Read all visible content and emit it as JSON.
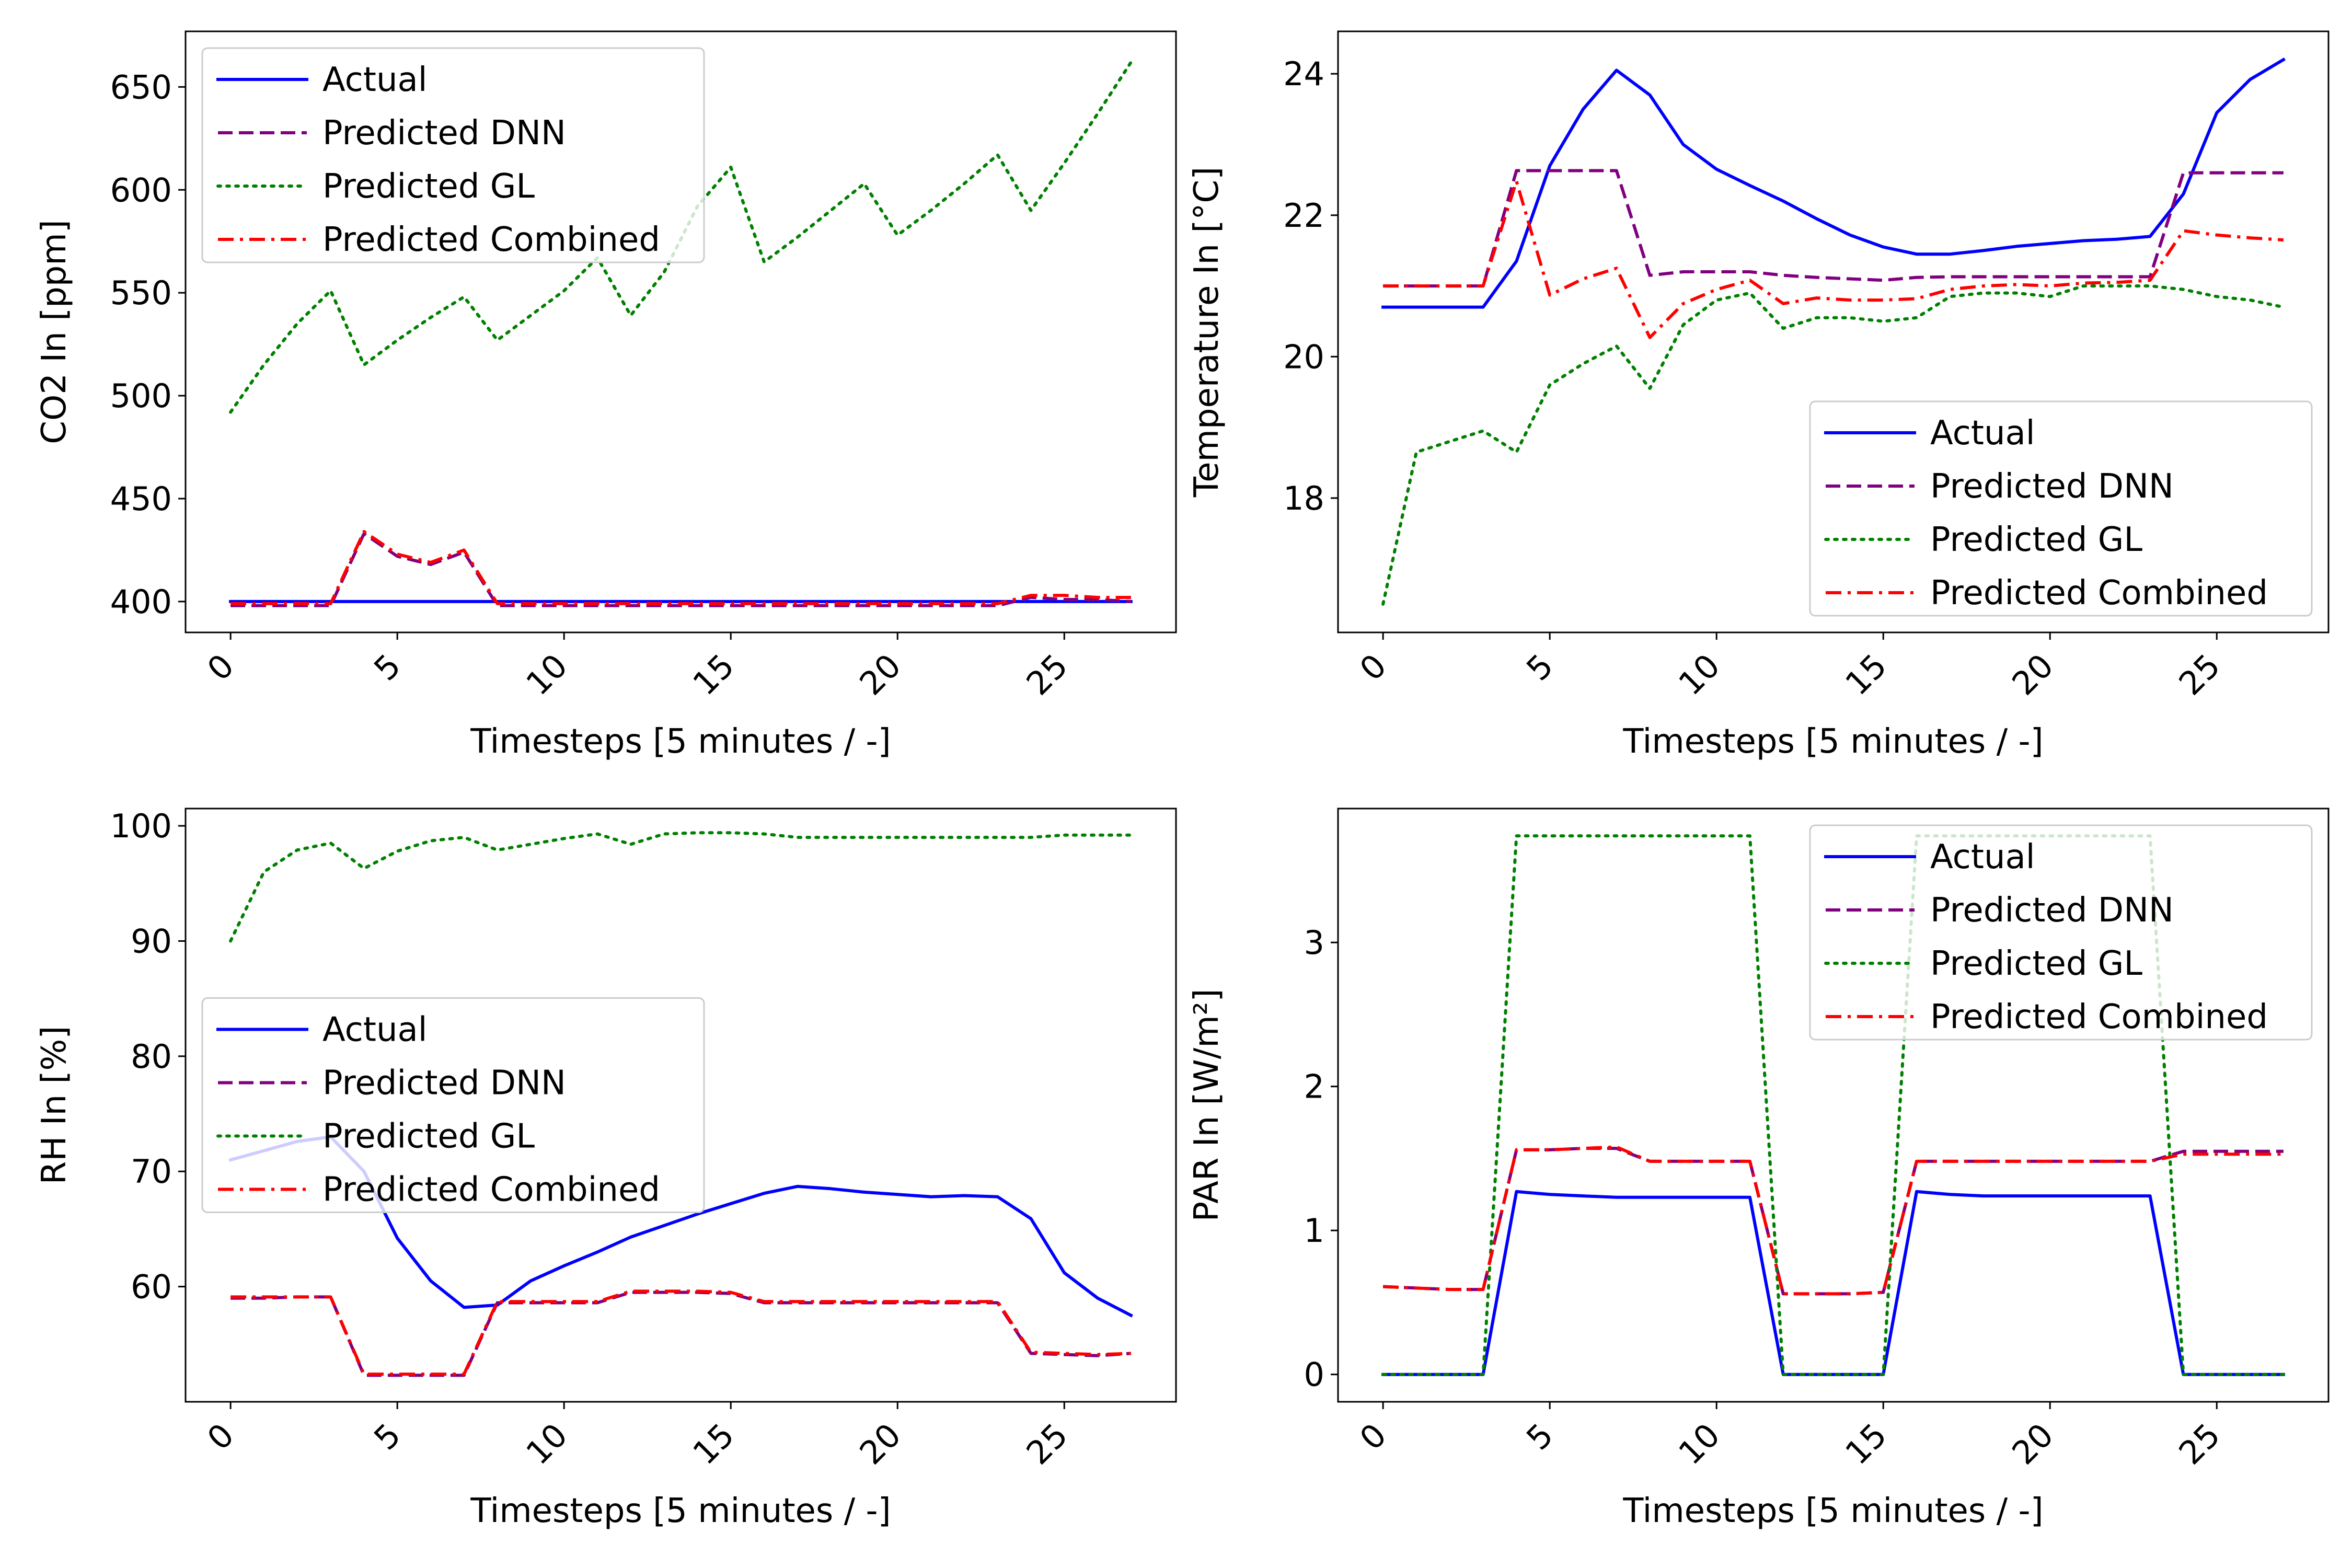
{
  "colors": {
    "actual": "#0000ff",
    "dnn": "#800080",
    "gl": "#008000",
    "combined": "#ff0000"
  },
  "legend_labels": [
    "Actual",
    "Predicted DNN",
    "Predicted GL",
    "Predicted Combined"
  ],
  "chart_data": [
    {
      "type": "line",
      "panel": "top-left",
      "xlabel": "Timesteps [5 minutes / -]",
      "ylabel": "CO2 In [ppm]",
      "xlim": [
        -1.35,
        28.35
      ],
      "ylim": [
        385,
        677
      ],
      "xticks": [
        0,
        5,
        10,
        15,
        20,
        25
      ],
      "yticks": [
        400,
        450,
        500,
        550,
        600,
        650
      ],
      "legend": "top-left",
      "grid": false,
      "x": [
        0,
        1,
        2,
        3,
        4,
        5,
        6,
        7,
        8,
        9,
        10,
        11,
        12,
        13,
        14,
        15,
        16,
        17,
        18,
        19,
        20,
        21,
        22,
        23,
        24,
        25,
        26,
        27
      ],
      "series": [
        {
          "name": "Actual",
          "style": "solid",
          "values": [
            400,
            400,
            400,
            400,
            400,
            400,
            400,
            400,
            400,
            400,
            400,
            400,
            400,
            400,
            400,
            400,
            400,
            400,
            400,
            400,
            400,
            400,
            400,
            400,
            400,
            400,
            400,
            400
          ]
        },
        {
          "name": "Predicted DNN",
          "style": "dashed",
          "values": [
            398,
            398,
            398,
            398,
            433,
            422,
            418,
            424,
            398,
            398,
            398,
            398,
            398,
            398,
            398,
            398,
            398,
            398,
            398,
            398,
            398,
            398,
            398,
            398,
            402,
            401,
            401,
            400
          ]
        },
        {
          "name": "Predicted GL",
          "style": "dotted",
          "values": [
            492,
            515,
            535,
            551,
            515,
            527,
            538,
            548,
            527,
            539,
            551,
            567,
            539,
            560,
            592,
            611,
            565,
            577,
            590,
            603,
            578,
            590,
            603,
            617,
            590,
            613,
            637,
            662
          ]
        },
        {
          "name": "Predicted Combined",
          "style": "dashdot",
          "values": [
            399,
            399,
            399,
            399,
            434,
            423,
            419,
            425,
            399,
            399,
            399,
            399,
            399,
            399,
            399,
            399,
            399,
            399,
            399,
            399,
            399,
            399,
            399,
            399,
            403,
            403,
            402,
            402
          ]
        }
      ]
    },
    {
      "type": "line",
      "panel": "top-right",
      "xlabel": "Timesteps [5 minutes / -]",
      "ylabel": "Temperature In [°C]",
      "xlim": [
        -1.35,
        28.35
      ],
      "ylim": [
        16.1,
        24.6
      ],
      "xticks": [
        0,
        5,
        10,
        15,
        20,
        25
      ],
      "yticks": [
        18,
        20,
        22,
        24
      ],
      "legend": "bottom-right",
      "grid": false,
      "x": [
        0,
        1,
        2,
        3,
        4,
        5,
        6,
        7,
        8,
        9,
        10,
        11,
        12,
        13,
        14,
        15,
        16,
        17,
        18,
        19,
        20,
        21,
        22,
        23,
        24,
        25,
        26,
        27
      ],
      "series": [
        {
          "name": "Actual",
          "style": "solid",
          "values": [
            20.7,
            20.7,
            20.7,
            20.7,
            21.35,
            22.7,
            23.5,
            24.05,
            23.7,
            23.0,
            22.65,
            22.42,
            22.2,
            21.95,
            21.72,
            21.55,
            21.45,
            21.45,
            21.5,
            21.56,
            21.6,
            21.64,
            21.66,
            21.7,
            22.3,
            23.45,
            23.92,
            24.2
          ]
        },
        {
          "name": "Predicted DNN",
          "style": "dashed",
          "values": [
            21.0,
            21.0,
            21.0,
            21.0,
            22.63,
            22.63,
            22.63,
            22.63,
            21.15,
            21.2,
            21.2,
            21.2,
            21.15,
            21.12,
            21.1,
            21.08,
            21.12,
            21.13,
            21.13,
            21.13,
            21.13,
            21.13,
            21.13,
            21.13,
            22.6,
            22.6,
            22.6,
            22.6
          ]
        },
        {
          "name": "Predicted GL",
          "style": "dotted",
          "values": [
            16.5,
            18.65,
            18.8,
            18.95,
            18.65,
            19.6,
            19.9,
            20.15,
            19.55,
            20.45,
            20.8,
            20.9,
            20.4,
            20.55,
            20.55,
            20.5,
            20.55,
            20.85,
            20.9,
            20.9,
            20.85,
            21.0,
            21.0,
            21.0,
            20.95,
            20.85,
            20.8,
            20.7
          ]
        },
        {
          "name": "Predicted Combined",
          "style": "dashdot",
          "values": [
            21.0,
            21.0,
            21.0,
            21.0,
            22.48,
            20.87,
            21.1,
            21.25,
            20.27,
            20.75,
            20.95,
            21.08,
            20.75,
            20.83,
            20.8,
            20.8,
            20.82,
            20.95,
            21.0,
            21.02,
            21.0,
            21.04,
            21.05,
            21.08,
            21.78,
            21.72,
            21.68,
            21.65
          ]
        }
      ]
    },
    {
      "type": "line",
      "panel": "bottom-left",
      "xlabel": "Timesteps [5 minutes / -]",
      "ylabel": "RH In [%]",
      "xlim": [
        -1.35,
        28.35
      ],
      "ylim": [
        50.0,
        101.5
      ],
      "xticks": [
        0,
        5,
        10,
        15,
        20,
        25
      ],
      "yticks": [
        60,
        70,
        80,
        90,
        100
      ],
      "legend": "center-left",
      "grid": false,
      "x": [
        0,
        1,
        2,
        3,
        4,
        5,
        6,
        7,
        8,
        9,
        10,
        11,
        12,
        13,
        14,
        15,
        16,
        17,
        18,
        19,
        20,
        21,
        22,
        23,
        24,
        25,
        26,
        27
      ],
      "series": [
        {
          "name": "Actual",
          "style": "solid",
          "values": [
            71.0,
            71.8,
            72.6,
            73.0,
            70.0,
            64.2,
            60.5,
            58.2,
            58.4,
            60.5,
            61.8,
            63.0,
            64.3,
            65.3,
            66.3,
            67.2,
            68.1,
            68.7,
            68.5,
            68.2,
            68.0,
            67.8,
            67.9,
            67.8,
            65.9,
            61.2,
            59.0,
            57.5
          ]
        },
        {
          "name": "Predicted DNN",
          "style": "dashed",
          "values": [
            59.0,
            59.0,
            59.1,
            59.1,
            52.3,
            52.3,
            52.3,
            52.3,
            58.6,
            58.6,
            58.6,
            58.6,
            59.5,
            59.5,
            59.5,
            59.4,
            58.6,
            58.6,
            58.6,
            58.6,
            58.6,
            58.6,
            58.6,
            58.6,
            54.2,
            54.1,
            54.0,
            54.2
          ]
        },
        {
          "name": "Predicted GL",
          "style": "dotted",
          "values": [
            90.0,
            96.0,
            97.9,
            98.5,
            96.3,
            97.8,
            98.7,
            99.0,
            97.9,
            98.4,
            98.9,
            99.3,
            98.4,
            99.3,
            99.4,
            99.4,
            99.3,
            99.0,
            99.0,
            99.0,
            99.0,
            99.0,
            99.0,
            99.0,
            99.0,
            99.2,
            99.2,
            99.2
          ]
        },
        {
          "name": "Predicted Combined",
          "style": "dashdot",
          "values": [
            59.1,
            59.1,
            59.1,
            59.1,
            52.4,
            52.4,
            52.4,
            52.4,
            58.7,
            58.7,
            58.7,
            58.7,
            59.6,
            59.6,
            59.6,
            59.5,
            58.7,
            58.7,
            58.7,
            58.7,
            58.7,
            58.7,
            58.7,
            58.7,
            54.3,
            54.2,
            54.1,
            54.2
          ]
        }
      ]
    },
    {
      "type": "line",
      "panel": "bottom-right",
      "xlabel": "Timesteps [5 minutes / -]",
      "ylabel": "PAR In [W/m²]",
      "xlim": [
        -1.35,
        28.35
      ],
      "ylim": [
        -0.19,
        3.93
      ],
      "xticks": [
        0,
        5,
        10,
        15,
        20,
        25
      ],
      "yticks": [
        0,
        1,
        2,
        3
      ],
      "legend": "top-right",
      "grid": false,
      "x": [
        0,
        1,
        2,
        3,
        4,
        5,
        6,
        7,
        8,
        9,
        10,
        11,
        12,
        13,
        14,
        15,
        16,
        17,
        18,
        19,
        20,
        21,
        22,
        23,
        24,
        25,
        26,
        27
      ],
      "series": [
        {
          "name": "Actual",
          "style": "solid",
          "values": [
            0,
            0,
            0,
            0,
            1.27,
            1.25,
            1.24,
            1.23,
            1.23,
            1.23,
            1.23,
            1.23,
            0,
            0,
            0,
            0,
            1.27,
            1.25,
            1.24,
            1.24,
            1.24,
            1.24,
            1.24,
            1.24,
            0,
            0,
            0,
            0
          ]
        },
        {
          "name": "Predicted DNN",
          "style": "dashed",
          "values": [
            0.61,
            0.6,
            0.59,
            0.59,
            1.56,
            1.56,
            1.57,
            1.57,
            1.48,
            1.48,
            1.48,
            1.48,
            0.56,
            0.56,
            0.56,
            0.57,
            1.48,
            1.48,
            1.48,
            1.48,
            1.48,
            1.48,
            1.48,
            1.48,
            1.55,
            1.55,
            1.55,
            1.55
          ]
        },
        {
          "name": "Predicted GL",
          "style": "dotted",
          "values": [
            0,
            0,
            0,
            0,
            3.74,
            3.74,
            3.74,
            3.74,
            3.74,
            3.74,
            3.74,
            3.74,
            0,
            0,
            0,
            0,
            3.74,
            3.74,
            3.74,
            3.74,
            3.74,
            3.74,
            3.74,
            3.74,
            0,
            0,
            0,
            0
          ]
        },
        {
          "name": "Predicted Combined",
          "style": "dashdot",
          "values": [
            0.61,
            0.6,
            0.59,
            0.59,
            1.56,
            1.56,
            1.57,
            1.58,
            1.48,
            1.48,
            1.48,
            1.48,
            0.56,
            0.56,
            0.56,
            0.57,
            1.48,
            1.48,
            1.48,
            1.48,
            1.48,
            1.48,
            1.48,
            1.48,
            1.53,
            1.53,
            1.53,
            1.53
          ]
        }
      ]
    }
  ]
}
